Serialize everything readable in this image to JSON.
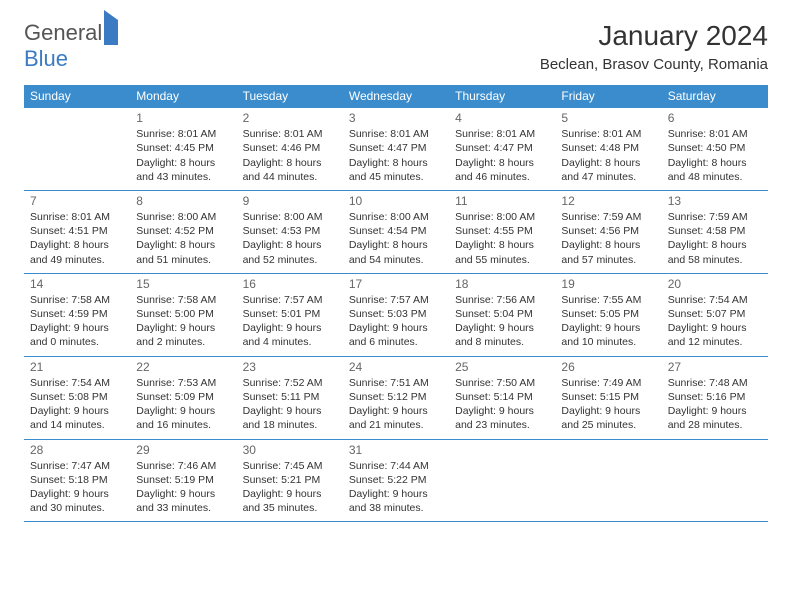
{
  "logo": {
    "part1": "General",
    "part2": "Blue"
  },
  "title": "January 2024",
  "location": "Beclean, Brasov County, Romania",
  "colors": {
    "header_bg": "#3b8ccc",
    "header_fg": "#ffffff",
    "rule": "#3b8ccc",
    "text": "#333333",
    "daynum": "#666666"
  },
  "day_headers": [
    "Sunday",
    "Monday",
    "Tuesday",
    "Wednesday",
    "Thursday",
    "Friday",
    "Saturday"
  ],
  "weeks": [
    [
      null,
      {
        "n": "1",
        "sr": "Sunrise: 8:01 AM",
        "ss": "Sunset: 4:45 PM",
        "d1": "Daylight: 8 hours",
        "d2": "and 43 minutes."
      },
      {
        "n": "2",
        "sr": "Sunrise: 8:01 AM",
        "ss": "Sunset: 4:46 PM",
        "d1": "Daylight: 8 hours",
        "d2": "and 44 minutes."
      },
      {
        "n": "3",
        "sr": "Sunrise: 8:01 AM",
        "ss": "Sunset: 4:47 PM",
        "d1": "Daylight: 8 hours",
        "d2": "and 45 minutes."
      },
      {
        "n": "4",
        "sr": "Sunrise: 8:01 AM",
        "ss": "Sunset: 4:47 PM",
        "d1": "Daylight: 8 hours",
        "d2": "and 46 minutes."
      },
      {
        "n": "5",
        "sr": "Sunrise: 8:01 AM",
        "ss": "Sunset: 4:48 PM",
        "d1": "Daylight: 8 hours",
        "d2": "and 47 minutes."
      },
      {
        "n": "6",
        "sr": "Sunrise: 8:01 AM",
        "ss": "Sunset: 4:50 PM",
        "d1": "Daylight: 8 hours",
        "d2": "and 48 minutes."
      }
    ],
    [
      {
        "n": "7",
        "sr": "Sunrise: 8:01 AM",
        "ss": "Sunset: 4:51 PM",
        "d1": "Daylight: 8 hours",
        "d2": "and 49 minutes."
      },
      {
        "n": "8",
        "sr": "Sunrise: 8:00 AM",
        "ss": "Sunset: 4:52 PM",
        "d1": "Daylight: 8 hours",
        "d2": "and 51 minutes."
      },
      {
        "n": "9",
        "sr": "Sunrise: 8:00 AM",
        "ss": "Sunset: 4:53 PM",
        "d1": "Daylight: 8 hours",
        "d2": "and 52 minutes."
      },
      {
        "n": "10",
        "sr": "Sunrise: 8:00 AM",
        "ss": "Sunset: 4:54 PM",
        "d1": "Daylight: 8 hours",
        "d2": "and 54 minutes."
      },
      {
        "n": "11",
        "sr": "Sunrise: 8:00 AM",
        "ss": "Sunset: 4:55 PM",
        "d1": "Daylight: 8 hours",
        "d2": "and 55 minutes."
      },
      {
        "n": "12",
        "sr": "Sunrise: 7:59 AM",
        "ss": "Sunset: 4:56 PM",
        "d1": "Daylight: 8 hours",
        "d2": "and 57 minutes."
      },
      {
        "n": "13",
        "sr": "Sunrise: 7:59 AM",
        "ss": "Sunset: 4:58 PM",
        "d1": "Daylight: 8 hours",
        "d2": "and 58 minutes."
      }
    ],
    [
      {
        "n": "14",
        "sr": "Sunrise: 7:58 AM",
        "ss": "Sunset: 4:59 PM",
        "d1": "Daylight: 9 hours",
        "d2": "and 0 minutes."
      },
      {
        "n": "15",
        "sr": "Sunrise: 7:58 AM",
        "ss": "Sunset: 5:00 PM",
        "d1": "Daylight: 9 hours",
        "d2": "and 2 minutes."
      },
      {
        "n": "16",
        "sr": "Sunrise: 7:57 AM",
        "ss": "Sunset: 5:01 PM",
        "d1": "Daylight: 9 hours",
        "d2": "and 4 minutes."
      },
      {
        "n": "17",
        "sr": "Sunrise: 7:57 AM",
        "ss": "Sunset: 5:03 PM",
        "d1": "Daylight: 9 hours",
        "d2": "and 6 minutes."
      },
      {
        "n": "18",
        "sr": "Sunrise: 7:56 AM",
        "ss": "Sunset: 5:04 PM",
        "d1": "Daylight: 9 hours",
        "d2": "and 8 minutes."
      },
      {
        "n": "19",
        "sr": "Sunrise: 7:55 AM",
        "ss": "Sunset: 5:05 PM",
        "d1": "Daylight: 9 hours",
        "d2": "and 10 minutes."
      },
      {
        "n": "20",
        "sr": "Sunrise: 7:54 AM",
        "ss": "Sunset: 5:07 PM",
        "d1": "Daylight: 9 hours",
        "d2": "and 12 minutes."
      }
    ],
    [
      {
        "n": "21",
        "sr": "Sunrise: 7:54 AM",
        "ss": "Sunset: 5:08 PM",
        "d1": "Daylight: 9 hours",
        "d2": "and 14 minutes."
      },
      {
        "n": "22",
        "sr": "Sunrise: 7:53 AM",
        "ss": "Sunset: 5:09 PM",
        "d1": "Daylight: 9 hours",
        "d2": "and 16 minutes."
      },
      {
        "n": "23",
        "sr": "Sunrise: 7:52 AM",
        "ss": "Sunset: 5:11 PM",
        "d1": "Daylight: 9 hours",
        "d2": "and 18 minutes."
      },
      {
        "n": "24",
        "sr": "Sunrise: 7:51 AM",
        "ss": "Sunset: 5:12 PM",
        "d1": "Daylight: 9 hours",
        "d2": "and 21 minutes."
      },
      {
        "n": "25",
        "sr": "Sunrise: 7:50 AM",
        "ss": "Sunset: 5:14 PM",
        "d1": "Daylight: 9 hours",
        "d2": "and 23 minutes."
      },
      {
        "n": "26",
        "sr": "Sunrise: 7:49 AM",
        "ss": "Sunset: 5:15 PM",
        "d1": "Daylight: 9 hours",
        "d2": "and 25 minutes."
      },
      {
        "n": "27",
        "sr": "Sunrise: 7:48 AM",
        "ss": "Sunset: 5:16 PM",
        "d1": "Daylight: 9 hours",
        "d2": "and 28 minutes."
      }
    ],
    [
      {
        "n": "28",
        "sr": "Sunrise: 7:47 AM",
        "ss": "Sunset: 5:18 PM",
        "d1": "Daylight: 9 hours",
        "d2": "and 30 minutes."
      },
      {
        "n": "29",
        "sr": "Sunrise: 7:46 AM",
        "ss": "Sunset: 5:19 PM",
        "d1": "Daylight: 9 hours",
        "d2": "and 33 minutes."
      },
      {
        "n": "30",
        "sr": "Sunrise: 7:45 AM",
        "ss": "Sunset: 5:21 PM",
        "d1": "Daylight: 9 hours",
        "d2": "and 35 minutes."
      },
      {
        "n": "31",
        "sr": "Sunrise: 7:44 AM",
        "ss": "Sunset: 5:22 PM",
        "d1": "Daylight: 9 hours",
        "d2": "and 38 minutes."
      },
      null,
      null,
      null
    ]
  ]
}
